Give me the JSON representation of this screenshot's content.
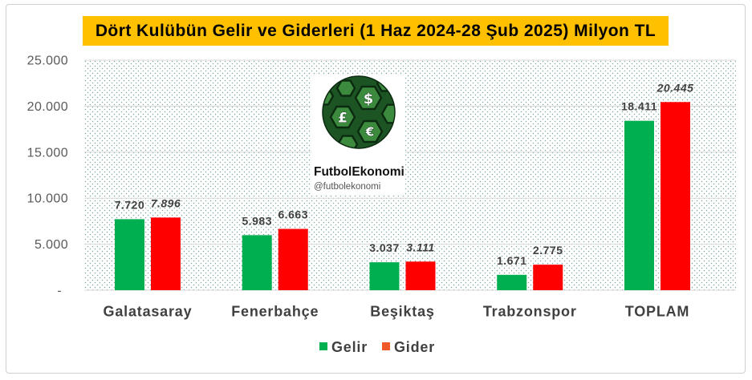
{
  "chart_data": {
    "type": "bar",
    "title": "Dört Kulübün Gelir ve Giderleri (1 Haz 2024-28 Şub 2025) Milyon TL",
    "categories": [
      "Galatasaray",
      "Fenerbahçe",
      "Beşiktaş",
      "Trabzonspor",
      "TOPLAM"
    ],
    "series": [
      {
        "name": "Gelir",
        "values": [
          7720,
          5983,
          3037,
          1671,
          18411
        ],
        "labels": [
          "7.720",
          "5.983",
          "3.037",
          "1.671",
          "18.411"
        ],
        "color": "#00B050",
        "legend_color": "#00B050"
      },
      {
        "name": "Gider",
        "values": [
          7896,
          6663,
          3111,
          2775,
          20445
        ],
        "labels": [
          "7.896",
          "6.663",
          "3.111",
          "2.775",
          "20.445"
        ],
        "color": "#FF0000",
        "legend_color": "#EE5A2A"
      }
    ],
    "ylim": [
      0,
      25000
    ],
    "yticks": [
      0,
      5000,
      10000,
      15000,
      20000,
      25000
    ],
    "ytick_labels": [
      "-",
      "5.000",
      "10.000",
      "15.000",
      "20.000",
      "25.000"
    ],
    "grid": true,
    "legend": "bottom-center"
  },
  "colors": {
    "title_background": "#FFC000",
    "plot_dots": "#7BA7A3"
  },
  "logo": {
    "name": "FutbolEkonomi",
    "handle": "@futbolekonomi",
    "symbols": [
      "$",
      "£",
      "€"
    ]
  }
}
